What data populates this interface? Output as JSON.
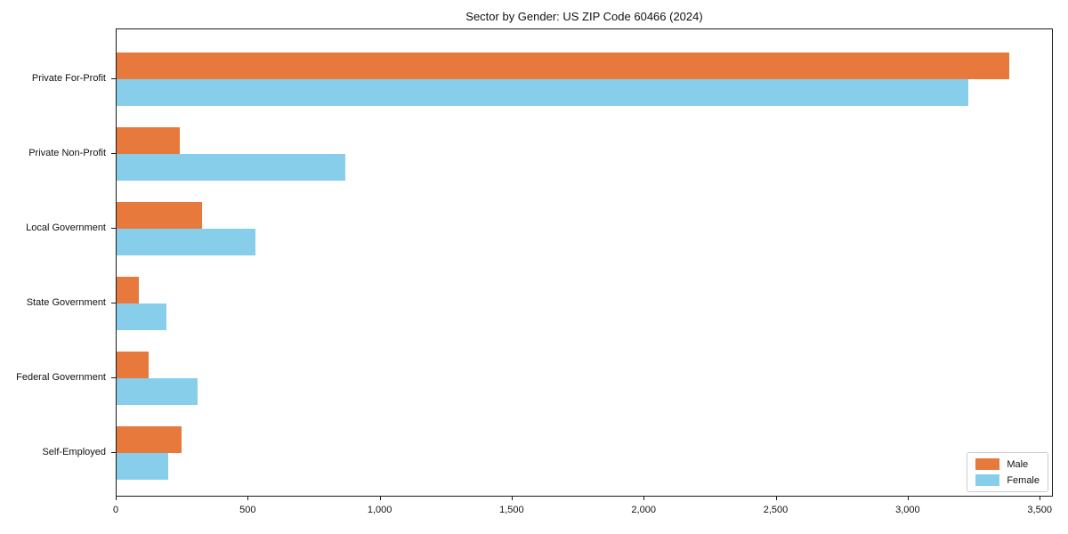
{
  "chart_data": {
    "type": "bar",
    "orientation": "horizontal",
    "title": "Sector by Gender: US ZIP Code 60466 (2024)",
    "categories": [
      "Private For-Profit",
      "Private Non-Profit",
      "Local Government",
      "State Government",
      "Federal Government",
      "Self-Employed"
    ],
    "series": [
      {
        "name": "Male",
        "color": "#e8793d",
        "values": [
          3380,
          240,
          325,
          85,
          120,
          245
        ]
      },
      {
        "name": "Female",
        "color": "#87ceeb",
        "values": [
          3225,
          865,
          525,
          190,
          305,
          195
        ]
      }
    ],
    "xlabel": "",
    "ylabel": "",
    "xlim": [
      0,
      3550
    ],
    "x_tick_values": [
      0,
      500,
      1000,
      1500,
      2000,
      2500,
      3000,
      3500
    ],
    "x_tick_labels": [
      "0",
      "500",
      "1,000",
      "1,500",
      "2,000",
      "2,500",
      "3,000",
      "3,500"
    ],
    "grid": false,
    "legend_position": "lower right",
    "axis_color": "#1a1a1a"
  }
}
